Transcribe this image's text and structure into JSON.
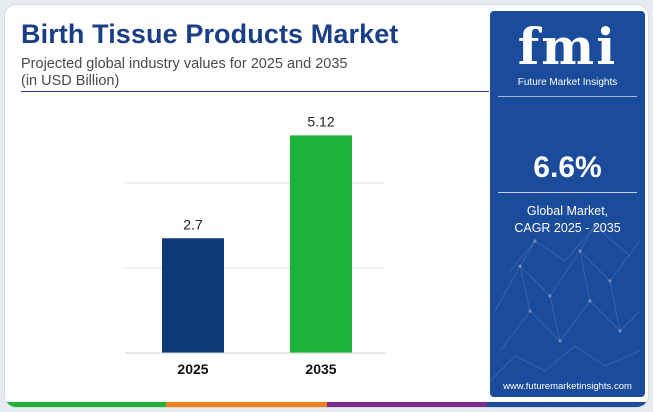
{
  "header": {
    "title": "Birth Tissue Products Market",
    "subtitle_line1": "Projected global industry values for 2025 and 2035",
    "subtitle_line2": "(in USD Billion)"
  },
  "chart_data": {
    "type": "bar",
    "categories": [
      "2025",
      "2035"
    ],
    "values": [
      2.7,
      5.12
    ],
    "data_labels": [
      "2.7",
      "5.12"
    ],
    "bar_colors": [
      "#0e3a78",
      "#1db33a"
    ],
    "ylim": [
      0,
      6
    ],
    "grid": true,
    "xlabel": "",
    "ylabel": ""
  },
  "sidebar": {
    "logo_mark": "fmi",
    "logo_text": "Future Market Insights",
    "cagr_value": "6.6%",
    "cagr_label_line1": "Global Market,",
    "cagr_label_line2": "CAGR 2025 - 2035",
    "website": "www.futuremarketinsights.com"
  },
  "colors": {
    "title": "#1b3f86",
    "panel": "#1b4b9b",
    "stripe": [
      "#1db33a",
      "#f07d1e",
      "#7b2d8e",
      "#1b4b9b"
    ]
  }
}
